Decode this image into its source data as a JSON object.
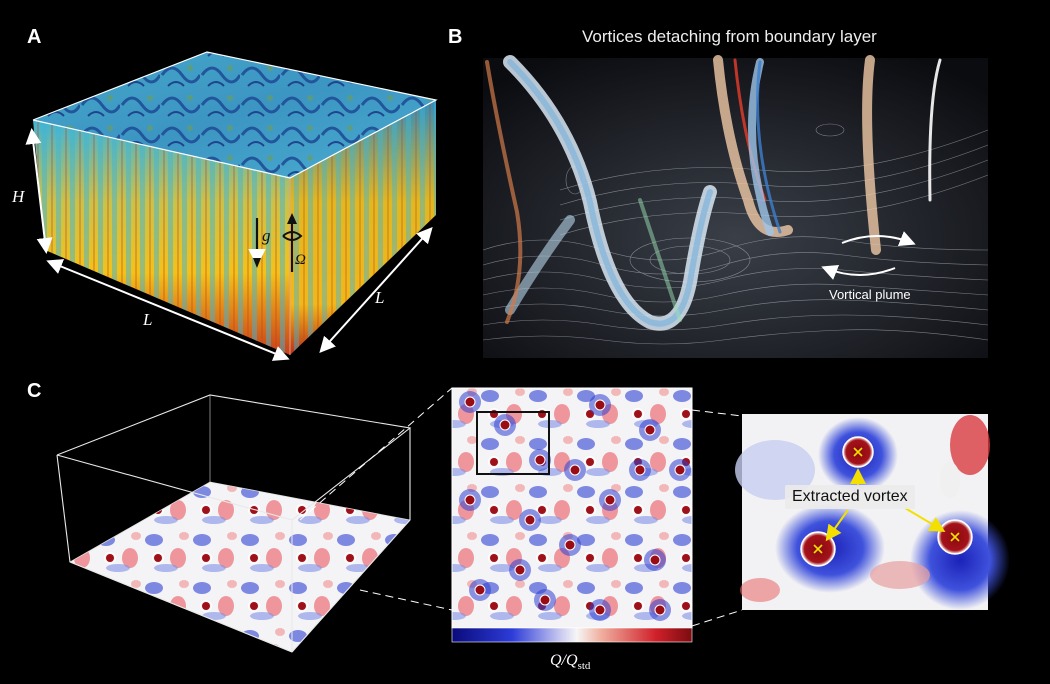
{
  "panels": {
    "a": {
      "letter": "A",
      "height_label": "H",
      "length_label_front": "L",
      "length_label_side": "L",
      "gravity_label": "g",
      "rotation_label": "Ω"
    },
    "b": {
      "letter": "B",
      "title": "Vortices detaching from boundary layer",
      "annotation": "Vortical plume"
    },
    "c": {
      "letter": "C",
      "annotation": "Extracted vortex",
      "colorbar_label_main": "Q/Q",
      "colorbar_label_sub": "std"
    }
  },
  "colors": {
    "background": "#000000",
    "cold": "#1a3fa8",
    "warm": "#f2c21a",
    "hot": "#c8401a",
    "cyan": "#3fb4d6",
    "q_negative": "#1c1fb5",
    "q_zero": "#f4f4f4",
    "q_positive": "#a8121c",
    "arrow_yellow": "#f3e000"
  }
}
